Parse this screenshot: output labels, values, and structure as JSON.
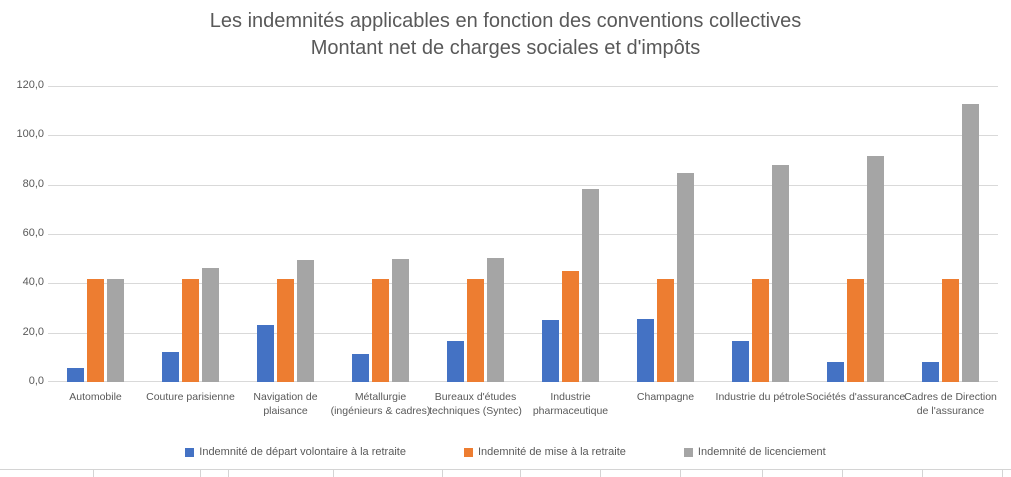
{
  "chart": {
    "title_line1": "Les indemnités applicables en fonction des conventions collectives",
    "title_line2": "Montant net de charges sociales et d'impôts"
  },
  "chart_data": {
    "type": "bar",
    "title": "Les indemnités applicables en fonction des conventions collectives",
    "subtitle": "Montant net de charges sociales et d'impôts",
    "categories": [
      "Automobile",
      "Couture parisienne",
      "Navigation de plaisance",
      "Métallurgie (ingénieurs & cadres)",
      "Bureaux d'études techniques (Syntec)",
      "Industrie pharmaceutique",
      "Champagne",
      "Industrie du pétrole",
      "Sociétés d'assurance",
      "Cadres de Direction de l'assurance"
    ],
    "series": [
      {
        "name": "Indemnité de départ volontaire à la retraite",
        "color": "#4472C4",
        "values": [
          5.5,
          12.0,
          23.2,
          11.3,
          16.8,
          25.1,
          25.4,
          16.5,
          8.2,
          8.2
        ]
      },
      {
        "name": "Indemnité de mise à la retraite",
        "color": "#ED7D31",
        "values": [
          41.7,
          41.7,
          41.7,
          41.7,
          41.7,
          44.9,
          41.7,
          41.7,
          41.7,
          41.7
        ]
      },
      {
        "name": "Indemnité de licenciement",
        "color": "#A5A5A5",
        "values": [
          41.7,
          46.2,
          49.6,
          50.0,
          50.3,
          78.2,
          84.8,
          88.1,
          91.7,
          112.6
        ]
      }
    ],
    "xlabel": "",
    "ylabel": "",
    "ylim": [
      0,
      120
    ],
    "ytick_step": 20,
    "ytick_labels": [
      "0,0",
      "20,0",
      "40,0",
      "60,0",
      "80,0",
      "100,0",
      "120,0"
    ],
    "grid": true,
    "legend_position": "bottom"
  },
  "colors": {
    "title_text": "#595959",
    "axis_text": "#595959",
    "gridline": "#D9D9D9",
    "background": "#FFFFFF"
  }
}
